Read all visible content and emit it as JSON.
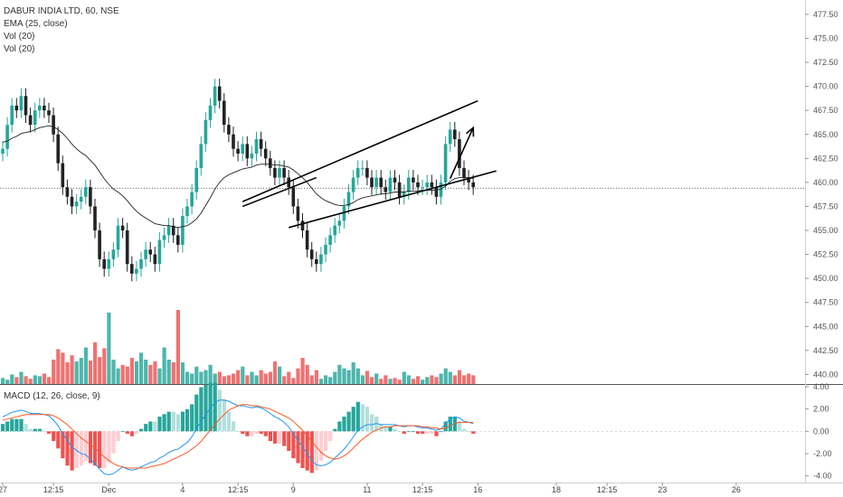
{
  "legend": {
    "symbol": "DABUR INDIA LTD, 60, NSE",
    "ema": "EMA (25, close)",
    "vol1": "Vol (20)",
    "vol2": "Vol (20)",
    "macd": "MACD (12, 26, close, 9)"
  },
  "colors": {
    "up": "#26a69a",
    "down": "#222222",
    "vol_up": "#4db6ac",
    "vol_down": "#ef7272",
    "macd": "#2196f3",
    "signal": "#ff5722",
    "hist_up_strong": "#26a69a",
    "hist_up_weak": "#b2dfdb",
    "hist_down_strong": "#ef5350",
    "hist_down_weak": "#ffcdd2"
  },
  "chart_data": {
    "type": "candlestick",
    "price_axis": {
      "ylim": [
        439.0,
        479.0
      ],
      "ticks": [
        "477.50",
        "475.00",
        "472.50",
        "470.00",
        "467.50",
        "465.00",
        "462.50",
        "460.00",
        "457.50",
        "455.00",
        "452.50",
        "450.00",
        "447.50",
        "445.00",
        "442.50",
        "440.00"
      ],
      "current_price_line": 459.4
    },
    "macd_axis": {
      "ylim": [
        -4.6,
        4.0
      ],
      "ticks": [
        "4.00",
        "2.00",
        "0.00",
        "-2.00",
        "-4.00"
      ]
    },
    "x_tick_labels": [
      "27",
      "12:15",
      "Dec",
      "4",
      "12:15",
      "9",
      "11",
      "12:15",
      "16",
      "18",
      "12:15",
      "23",
      "26"
    ],
    "close": [
      463.5,
      466,
      468,
      467.5,
      469,
      467,
      466,
      467.5,
      468,
      467.5,
      467,
      465,
      462,
      459.5,
      458.5,
      457.5,
      458,
      458.5,
      459.5,
      457.5,
      455,
      452,
      451,
      452,
      453,
      455.5,
      455,
      451.5,
      450.5,
      451,
      452,
      453,
      452.5,
      451.5,
      454,
      454.5,
      455.5,
      454.5,
      453.5,
      456.5,
      457.5,
      459,
      461.5,
      464,
      466.5,
      468,
      470,
      468.5,
      466,
      465,
      463.5,
      463,
      464,
      462.5,
      463,
      464.5,
      463.5,
      462.5,
      461.5,
      460.5,
      461.5,
      460.5,
      459.5,
      457.5,
      456,
      455,
      453,
      452,
      451.5,
      452.5,
      453.5,
      454.5,
      455.5,
      456,
      457.5,
      459,
      460.5,
      461.5,
      461.5,
      460.5,
      459.5,
      460.5,
      459.5,
      459,
      460.5,
      460,
      458.5,
      459,
      460.5,
      460,
      459.5,
      459.5,
      460,
      459.5,
      458.5,
      460,
      464,
      465.5,
      464.5,
      461.5,
      460.5,
      460,
      459.5
    ],
    "ema": [
      464.2,
      464.3,
      464.6,
      464.8,
      465.1,
      465.2,
      465.3,
      465.5,
      465.7,
      465.8,
      465.9,
      465.8,
      465.5,
      465.1,
      464.6,
      464,
      463.5,
      463.1,
      462.8,
      462.3,
      461.8,
      461.1,
      460.4,
      459.8,
      459.3,
      459,
      458.6,
      458.1,
      457.5,
      457,
      456.6,
      456.3,
      456,
      455.7,
      455.6,
      455.5,
      455.5,
      455.4,
      455.3,
      455.4,
      455.5,
      455.8,
      456.2,
      456.8,
      457.6,
      458.4,
      459.3,
      460,
      460.5,
      460.8,
      461,
      461.2,
      461.4,
      461.5,
      461.6,
      461.8,
      461.9,
      461.9,
      461.9,
      461.8,
      461.8,
      461.7,
      461.6,
      461.3,
      460.9,
      460.5,
      460,
      459.4,
      458.8,
      458.4,
      458.1,
      457.9,
      457.7,
      457.6,
      457.6,
      457.7,
      457.9,
      458.2,
      458.4,
      458.5,
      458.6,
      458.7,
      458.8,
      458.8,
      458.9,
      459,
      459,
      459,
      459.1,
      459.1,
      459.1,
      459.2,
      459.2,
      459.2,
      459.2,
      459.3,
      459.6,
      460.1,
      460.4,
      460.5,
      460.5,
      460.5,
      460.4
    ],
    "volume": [
      7,
      5,
      11,
      8,
      14,
      9,
      6,
      10,
      9,
      12,
      8,
      28,
      40,
      36,
      25,
      33,
      26,
      30,
      42,
      27,
      48,
      31,
      41,
      82,
      28,
      18,
      22,
      20,
      30,
      26,
      36,
      28,
      22,
      26,
      18,
      42,
      28,
      25,
      85,
      25,
      14,
      12,
      20,
      14,
      16,
      22,
      12,
      14,
      9,
      10,
      12,
      16,
      20,
      10,
      14,
      10,
      16,
      12,
      14,
      26,
      20,
      9,
      14,
      7,
      18,
      30,
      22,
      10,
      16,
      6,
      10,
      8,
      14,
      22,
      18,
      16,
      25,
      18,
      10,
      15,
      8,
      12,
      6,
      10,
      6,
      7,
      5,
      14,
      10,
      6,
      9,
      5,
      8,
      10,
      8,
      12,
      18,
      14,
      10,
      16,
      10,
      12,
      10
    ],
    "macd": [
      1.3,
      1.5,
      1.7,
      1.8,
      1.9,
      1.8,
      1.6,
      1.6,
      1.6,
      1.5,
      1.4,
      1.0,
      0.5,
      -0.2,
      -0.8,
      -1.4,
      -1.7,
      -2.0,
      -2.1,
      -2.5,
      -2.9,
      -3.4,
      -3.8,
      -3.9,
      -3.8,
      -3.5,
      -3.2,
      -3.4,
      -3.5,
      -3.4,
      -3.2,
      -3.0,
      -2.8,
      -2.7,
      -2.4,
      -2.2,
      -1.9,
      -1.7,
      -1.6,
      -1.3,
      -1.0,
      -0.5,
      0.2,
      0.9,
      1.5,
      2.1,
      2.6,
      2.8,
      2.8,
      2.7,
      2.5,
      2.3,
      2.3,
      2.2,
      2.1,
      2.2,
      2.1,
      1.9,
      1.6,
      1.3,
      1.1,
      0.8,
      0.4,
      -0.2,
      -0.8,
      -1.4,
      -2.0,
      -2.6,
      -3.0,
      -3.1,
      -3.0,
      -2.8,
      -2.4,
      -2.0,
      -1.6,
      -1.1,
      -0.5,
      0.1,
      0.4,
      0.6,
      0.6,
      0.7,
      0.6,
      0.6,
      0.6,
      0.6,
      0.5,
      0.4,
      0.5,
      0.5,
      0.4,
      0.3,
      0.3,
      0.2,
      0.1,
      0.2,
      0.7,
      1.1,
      1.3,
      1.2,
      0.9,
      0.8,
      0.7
    ],
    "signal": [
      1.0,
      1.1,
      1.2,
      1.3,
      1.4,
      1.5,
      1.5,
      1.5,
      1.5,
      1.5,
      1.5,
      1.4,
      1.2,
      0.9,
      0.6,
      0.2,
      -0.2,
      -0.6,
      -0.9,
      -1.2,
      -1.5,
      -1.9,
      -2.3,
      -2.6,
      -2.9,
      -3.1,
      -3.2,
      -3.3,
      -3.3,
      -3.3,
      -3.3,
      -3.3,
      -3.2,
      -3.1,
      -3.0,
      -2.9,
      -2.7,
      -2.5,
      -2.3,
      -2.1,
      -1.9,
      -1.6,
      -1.3,
      -0.9,
      -0.4,
      0.1,
      0.6,
      1.1,
      1.5,
      1.9,
      2.1,
      2.3,
      2.4,
      2.4,
      2.3,
      2.3,
      2.2,
      2.1,
      2.0,
      1.8,
      1.6,
      1.4,
      1.2,
      0.9,
      0.5,
      0.1,
      -0.4,
      -0.9,
      -1.4,
      -1.9,
      -2.2,
      -2.4,
      -2.5,
      -2.4,
      -2.2,
      -1.9,
      -1.5,
      -1.1,
      -0.7,
      -0.4,
      -0.1,
      0.1,
      0.3,
      0.4,
      0.4,
      0.5,
      0.5,
      0.5,
      0.5,
      0.5,
      0.5,
      0.4,
      0.4,
      0.3,
      0.3,
      0.2,
      0.3,
      0.5,
      0.7,
      0.8,
      0.8,
      0.8,
      0.8
    ],
    "annotations": [
      {
        "type": "trendline",
        "from": [
          52,
          458.0
        ],
        "to": [
          103,
          468.5
        ]
      },
      {
        "type": "trendline",
        "from": [
          62,
          455.3
        ],
        "to": [
          107,
          461.2
        ]
      },
      {
        "type": "trendline",
        "from": [
          52,
          457.5
        ],
        "to": [
          68,
          460.5
        ]
      },
      {
        "type": "arrow",
        "from": [
          97,
          460.4
        ],
        "to": [
          102,
          465.7
        ]
      }
    ]
  }
}
